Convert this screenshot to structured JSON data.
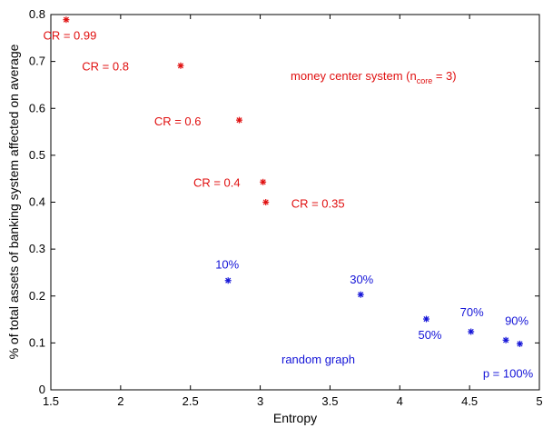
{
  "chart_data": {
    "type": "scatter",
    "title": "",
    "xlabel": "Entropy",
    "ylabel": "% of total assets of banking system affected on average",
    "xlim": [
      1.5,
      5
    ],
    "ylim": [
      0,
      0.8
    ],
    "xticks": [
      "1.5",
      "2",
      "2.5",
      "3",
      "3.5",
      "4",
      "4.5",
      "5"
    ],
    "yticks": [
      "0",
      "0.1",
      "0.2",
      "0.3",
      "0.4",
      "0.5",
      "0.6",
      "0.7",
      "0.8"
    ],
    "grid": false,
    "marker": "*",
    "series": [
      {
        "color": "#e01010",
        "points": [
          {
            "x": 1.61,
            "y": 0.789,
            "label": "CR = 0.99"
          },
          {
            "x": 2.43,
            "y": 0.691,
            "label": "CR = 0.8"
          },
          {
            "x": 2.85,
            "y": 0.575,
            "label": "CR = 0.6"
          },
          {
            "x": 3.02,
            "y": 0.443,
            "label": "CR = 0.4"
          },
          {
            "x": 3.04,
            "y": 0.4,
            "label": "CR = 0.35"
          }
        ]
      },
      {
        "color": "#1515d8",
        "points": [
          {
            "x": 2.77,
            "y": 0.233,
            "label": "10%"
          },
          {
            "x": 3.72,
            "y": 0.203,
            "label": "30%"
          },
          {
            "x": 4.19,
            "y": 0.151,
            "label": "50%"
          },
          {
            "x": 4.51,
            "y": 0.124,
            "label": "70%"
          },
          {
            "x": 4.76,
            "y": 0.106,
            "label": "90%"
          },
          {
            "x": 4.86,
            "y": 0.098,
            "label": "p = 100%"
          }
        ]
      }
    ],
    "annotations": [
      {
        "text_main": "money center system (n",
        "text_sub": "core",
        "text_tail": " = 3)",
        "color": "#e01010"
      },
      {
        "text": "random graph",
        "color": "#1515d8"
      }
    ]
  }
}
